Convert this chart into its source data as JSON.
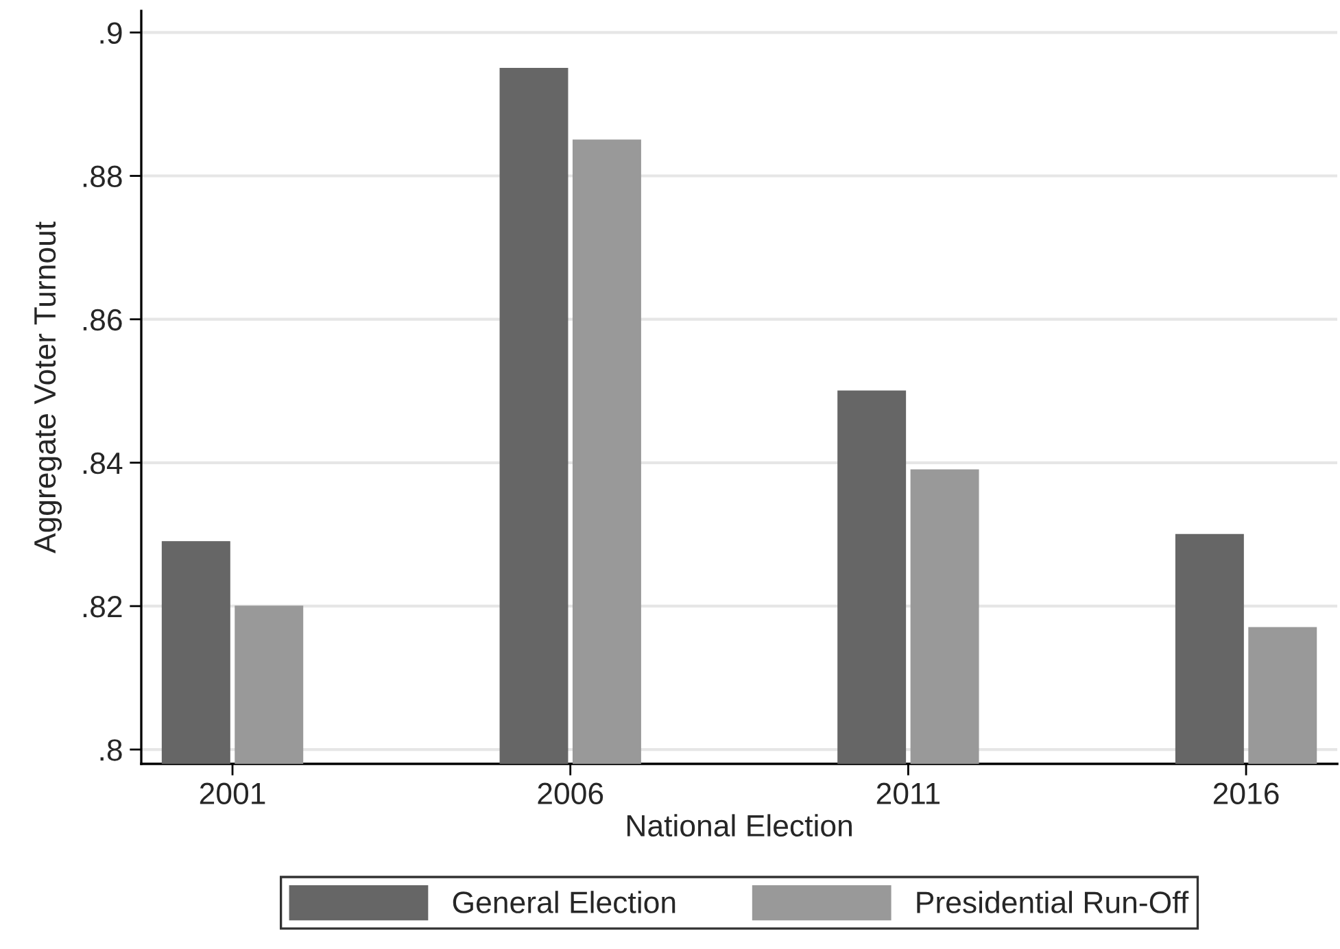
{
  "chart_data": {
    "type": "bar",
    "xlabel": "National Election",
    "ylabel": "Aggregate Voter Turnout",
    "categories": [
      "2001",
      "2006",
      "2011",
      "2016"
    ],
    "series": [
      {
        "name": "General Election",
        "color": "#666666",
        "values": [
          0.829,
          0.895,
          0.85,
          0.83
        ]
      },
      {
        "name": "Presidential Run-Off",
        "color": "#999999",
        "values": [
          0.82,
          0.885,
          0.839,
          0.817
        ]
      }
    ],
    "ylim": [
      0.798,
      0.903
    ],
    "yticks": [
      {
        "value": 0.8,
        "label": ".8"
      },
      {
        "value": 0.82,
        "label": ".82"
      },
      {
        "value": 0.84,
        "label": ".84"
      },
      {
        "value": 0.86,
        "label": ".86"
      },
      {
        "value": 0.88,
        "label": ".88"
      },
      {
        "value": 0.9,
        "label": ".9"
      }
    ],
    "grid": "y",
    "legend": "bottom"
  }
}
